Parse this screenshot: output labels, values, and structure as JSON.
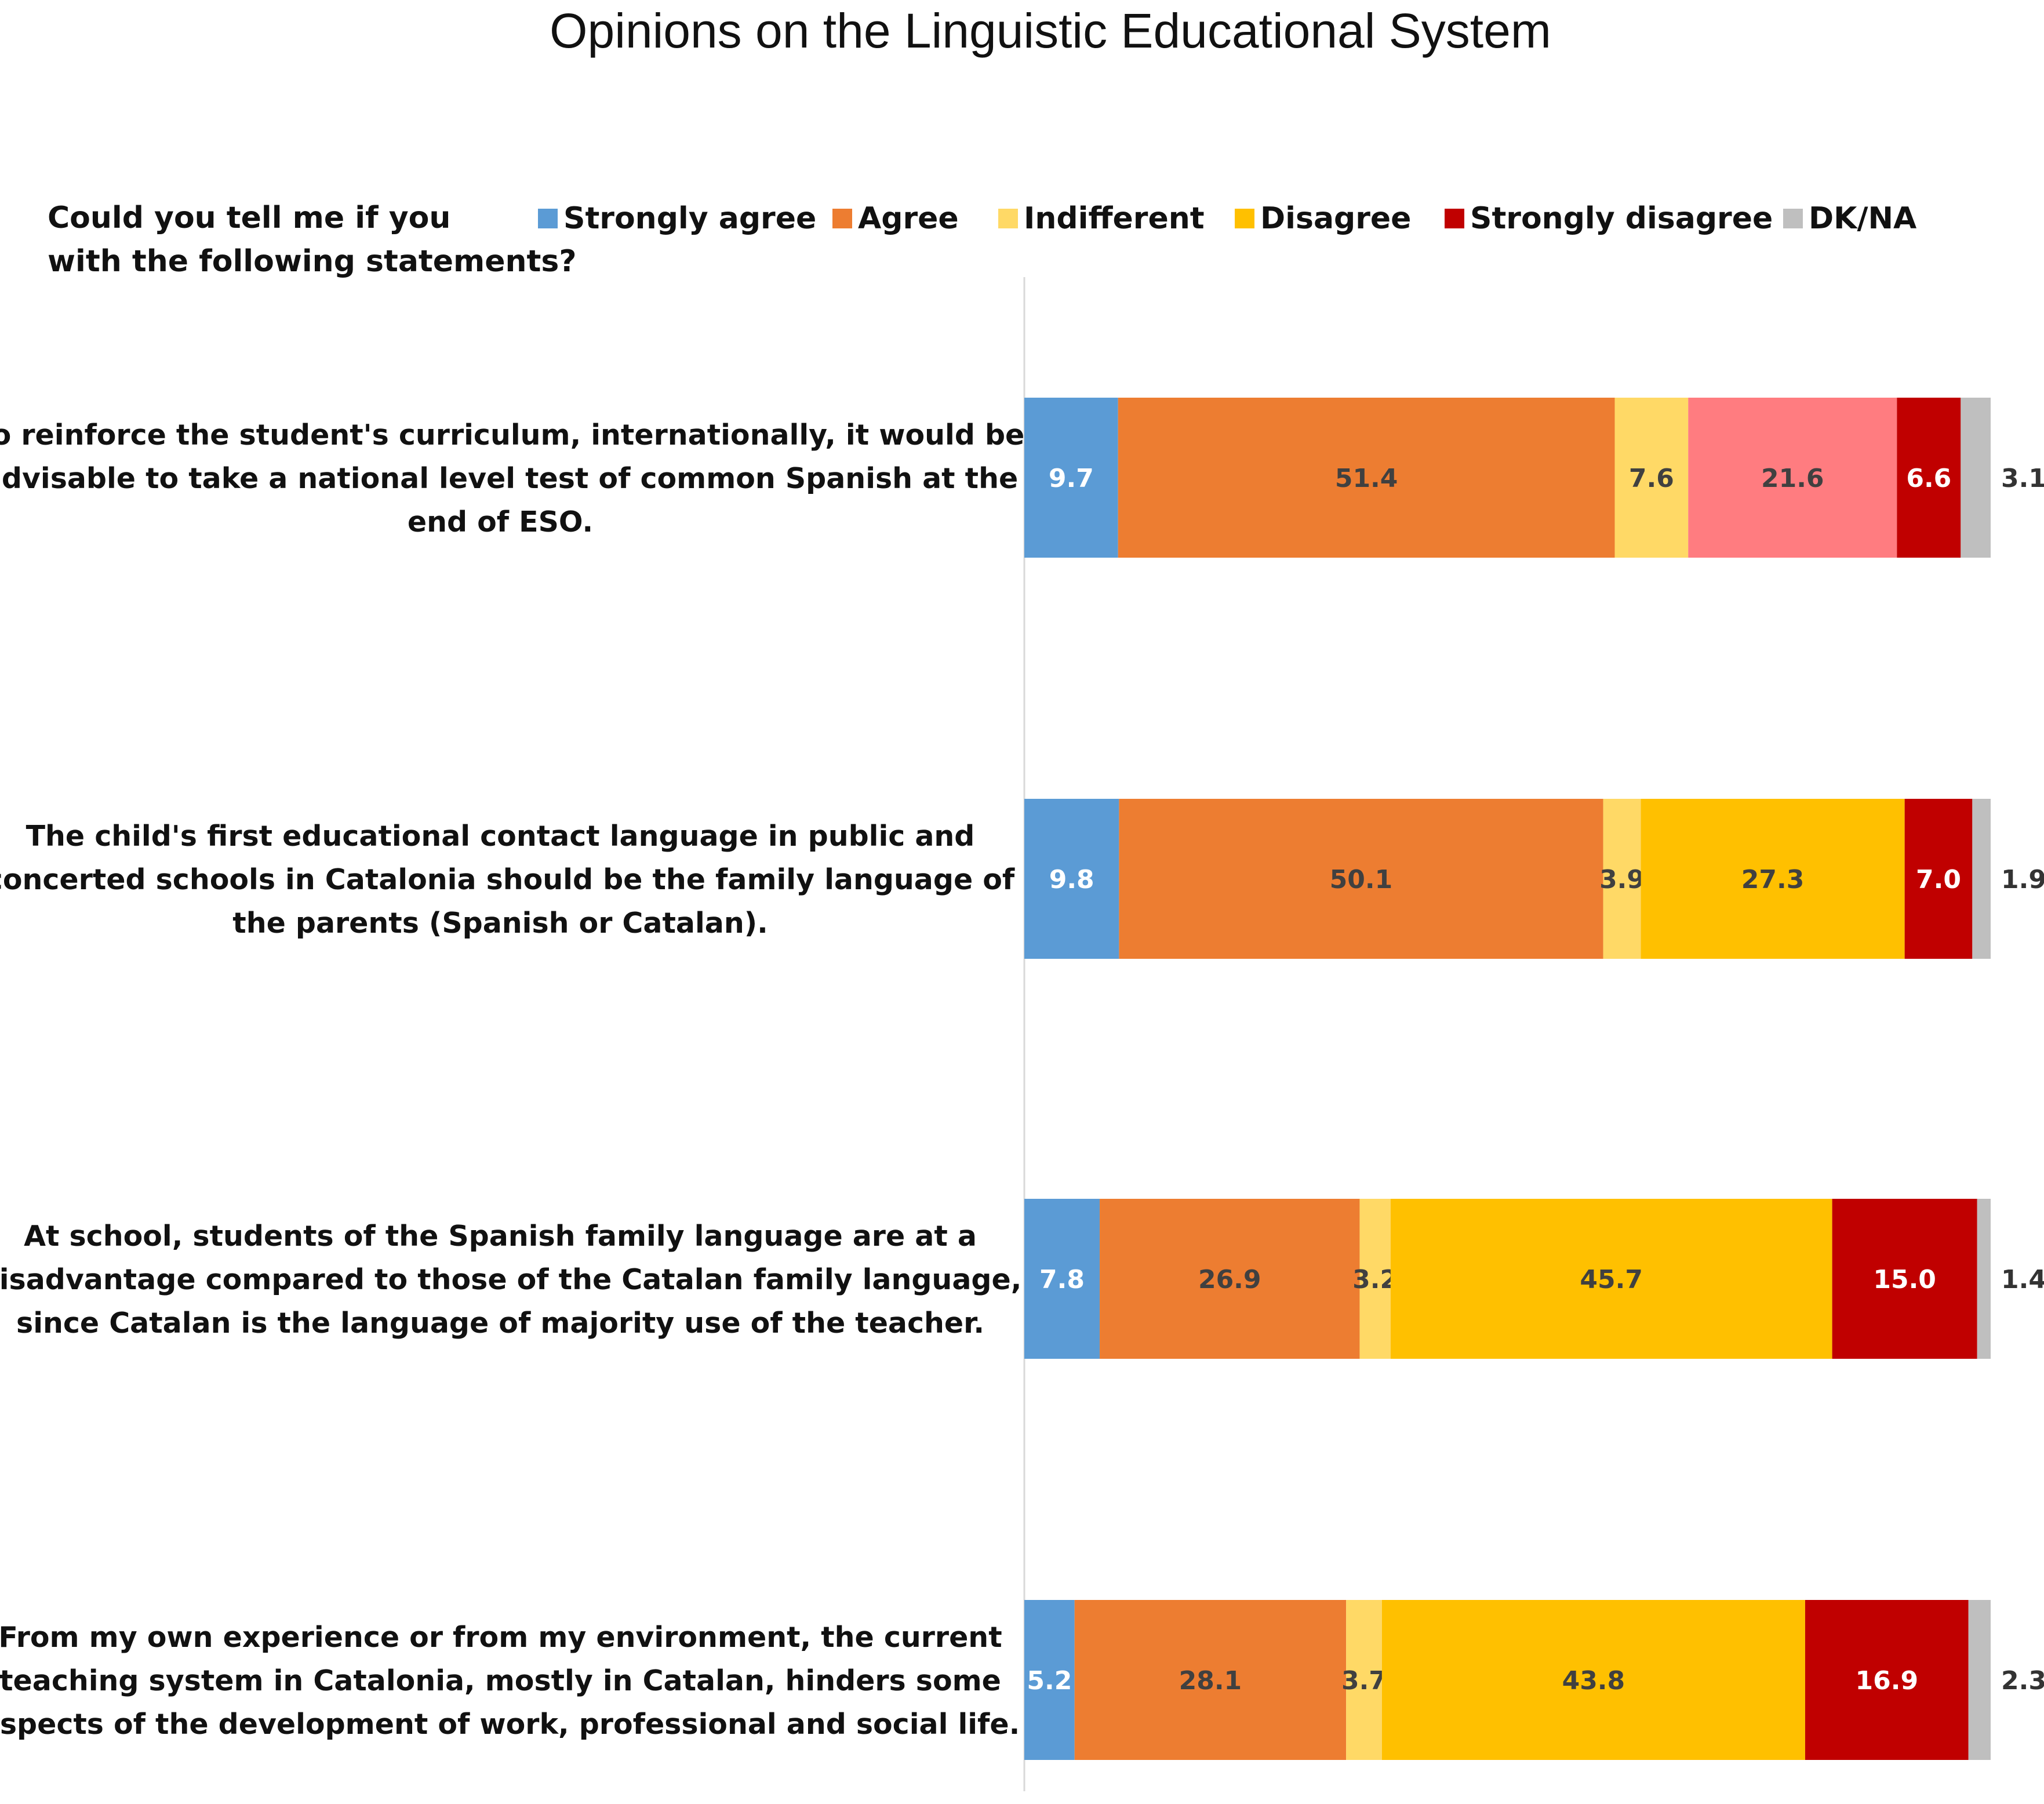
{
  "chart_data": {
    "type": "bar",
    "orientation": "horizontal",
    "stacked": true,
    "title": "Opinions on the Linguistic Educational System",
    "legend_prompt": [
      "Could you tell me if you",
      "with the following statements?"
    ],
    "legend_position": "top",
    "series": [
      {
        "name": "Strongly agree",
        "color": "#5b9bd5"
      },
      {
        "name": "Agree",
        "color": "#ed7d31"
      },
      {
        "name": "Indifferent",
        "color": "#ffd966"
      },
      {
        "name": "Disagree",
        "color": "#ffc000"
      },
      {
        "name": "Strongly disagree",
        "color": "#c00000"
      },
      {
        "name": "DK/NA",
        "color": "#bfbfbf"
      }
    ],
    "categories": [
      {
        "label": [
          "To reinforce the student's curriculum, internationally, it would be",
          "advisable to take a national level test of common Spanish at the",
          "end of ESO."
        ],
        "values": [
          9.7,
          51.4,
          7.6,
          21.6,
          6.6,
          3.1
        ],
        "disagree_color_override": "#ff7c80"
      },
      {
        "label": [
          "The child's first educational contact language in public and",
          "concerted schools in Catalonia should be the family language of",
          "the parents (Spanish or Catalan)."
        ],
        "values": [
          9.8,
          50.1,
          3.9,
          27.3,
          7.0,
          1.9
        ]
      },
      {
        "label": [
          "At school, students of the Spanish family language are at a",
          "disadvantage compared to those of the Catalan family language,",
          "since Catalan is the language of majority use of the teacher."
        ],
        "values": [
          7.8,
          26.9,
          3.2,
          45.7,
          15.0,
          1.4
        ]
      },
      {
        "label": [
          "From my own experience or from my environment, the current",
          "teaching system in Catalonia, mostly in Catalan, hinders some",
          "aspects of the development of work, professional and social life."
        ],
        "values": [
          5.2,
          28.1,
          3.7,
          43.8,
          16.9,
          2.3
        ]
      }
    ],
    "xlim": [
      0,
      100
    ],
    "grid": false
  }
}
